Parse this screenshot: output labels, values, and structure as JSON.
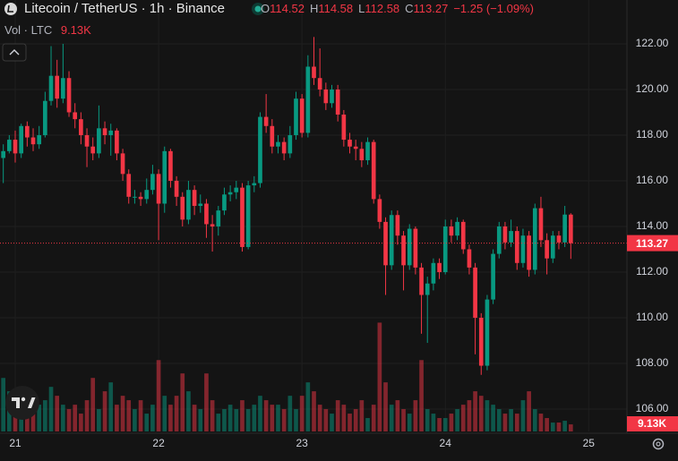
{
  "chart_data": {
    "type": "candlestick",
    "title": "Litecoin / TetherUS · 1h · Binance",
    "ohlc_letters": [
      "O",
      "H",
      "L",
      "C"
    ],
    "change_label": "−1.25 (−1.09%)",
    "volume_title": "Vol · LTC",
    "volume_last_label": "9.13K",
    "up_color": "#089981",
    "down_color": "#f23645",
    "open": [
      117.0,
      117.3,
      117.8,
      117.2,
      118.4,
      117.9,
      117.6,
      118.0,
      119.5,
      120.6,
      119.6,
      120.5,
      119.0,
      118.7,
      118.0,
      117.5,
      117.2,
      118.3,
      118.0,
      118.2,
      117.2,
      116.3,
      115.3,
      115.3,
      115.2,
      115.6,
      116.3,
      115.0,
      117.3,
      116.0,
      115.3,
      114.3,
      115.6,
      114.9,
      115.0,
      114.1,
      114.0,
      114.7,
      115.4,
      115.5,
      115.7,
      113.1,
      115.8,
      115.9,
      118.8,
      118.4,
      117.5,
      117.7,
      117.2,
      118.0,
      119.6,
      118.1,
      121.0,
      120.5,
      120.0,
      119.4,
      120.0,
      118.9,
      117.8,
      117.5,
      117.4,
      116.9,
      117.7,
      115.2,
      114.2,
      112.3,
      114.5,
      113.6,
      112.3,
      113.9,
      112.2,
      111.0,
      111.5,
      112.4,
      112.0,
      114.0,
      113.6,
      114.2,
      113.0,
      112.2,
      110.0,
      107.9,
      110.8,
      112.8,
      114.0,
      113.3,
      113.8,
      112.4,
      113.6,
      112.1,
      114.8,
      113.4,
      112.6,
      113.6,
      113.3,
      114.52
    ],
    "high": [
      117.6,
      118.0,
      118.2,
      118.5,
      118.6,
      118.3,
      118.4,
      119.9,
      121.9,
      121.3,
      122.0,
      120.8,
      119.4,
      119.0,
      118.3,
      117.9,
      119.3,
      118.6,
      118.5,
      118.3,
      117.4,
      116.5,
      115.6,
      115.5,
      116.1,
      116.7,
      116.5,
      117.5,
      117.4,
      116.2,
      115.5,
      116.0,
      115.8,
      115.4,
      115.2,
      114.5,
      114.9,
      115.7,
      115.8,
      116.0,
      115.9,
      116.0,
      116.2,
      119.0,
      119.8,
      118.7,
      118.0,
      117.9,
      118.4,
      119.9,
      119.8,
      121.5,
      122.3,
      121.8,
      120.3,
      120.2,
      120.2,
      119.1,
      118.1,
      117.8,
      117.7,
      117.9,
      117.8,
      115.4,
      114.4,
      114.7,
      114.7,
      113.8,
      114.1,
      114.0,
      112.4,
      111.8,
      112.6,
      112.6,
      114.3,
      114.3,
      114.4,
      114.3,
      113.2,
      112.4,
      110.2,
      111.0,
      113.0,
      114.2,
      114.2,
      114.3,
      114.0,
      113.9,
      113.8,
      115.0,
      115.3,
      113.7,
      113.8,
      113.8,
      114.9,
      114.58
    ],
    "low": [
      115.9,
      117.2,
      116.8,
      117.0,
      117.5,
      117.3,
      117.4,
      117.9,
      119.3,
      119.2,
      119.4,
      118.8,
      118.3,
      117.6,
      116.6,
      116.9,
      117.0,
      117.6,
      117.1,
      116.9,
      116.0,
      115.0,
      115.0,
      114.9,
      115.0,
      115.4,
      113.4,
      114.6,
      115.7,
      114.9,
      114.0,
      114.1,
      114.5,
      114.6,
      113.5,
      112.9,
      113.6,
      114.5,
      115.1,
      115.2,
      112.9,
      113.0,
      115.5,
      115.7,
      118.1,
      117.2,
      117.2,
      116.9,
      117.0,
      117.8,
      117.9,
      117.9,
      120.2,
      119.7,
      119.1,
      119.2,
      118.6,
      117.5,
      117.2,
      116.9,
      116.6,
      116.7,
      115.0,
      113.9,
      111.0,
      112.1,
      113.2,
      111.2,
      112.1,
      111.9,
      109.3,
      108.9,
      111.2,
      111.7,
      111.9,
      113.3,
      113.4,
      112.8,
      111.9,
      108.4,
      107.5,
      107.7,
      110.6,
      112.6,
      113.0,
      113.1,
      112.1,
      112.2,
      111.8,
      111.9,
      113.1,
      111.9,
      112.4,
      113.0,
      113.1,
      112.58
    ],
    "close": [
      117.3,
      117.8,
      117.2,
      118.4,
      117.9,
      117.6,
      118.0,
      119.5,
      120.6,
      119.6,
      120.5,
      119.0,
      118.7,
      118.0,
      117.5,
      117.2,
      118.3,
      118.0,
      118.2,
      117.2,
      116.3,
      115.3,
      115.3,
      115.2,
      115.6,
      116.3,
      115.0,
      117.3,
      116.0,
      115.3,
      114.3,
      115.6,
      114.9,
      115.0,
      114.1,
      114.0,
      114.7,
      115.4,
      115.5,
      115.7,
      113.1,
      115.8,
      115.9,
      118.8,
      118.4,
      117.5,
      117.7,
      117.2,
      118.0,
      119.6,
      118.1,
      121.0,
      120.5,
      120.0,
      119.4,
      120.0,
      118.9,
      117.8,
      117.5,
      117.4,
      116.9,
      117.7,
      115.2,
      114.2,
      112.3,
      114.5,
      113.6,
      112.3,
      113.9,
      112.2,
      111.0,
      111.5,
      112.4,
      112.0,
      114.0,
      113.6,
      114.2,
      113.0,
      112.2,
      110.0,
      107.9,
      110.8,
      112.8,
      114.0,
      113.3,
      113.8,
      112.4,
      113.6,
      112.1,
      114.8,
      113.4,
      112.6,
      113.6,
      113.3,
      114.52,
      113.27
    ],
    "volume": [
      69000,
      51800,
      40300,
      57500,
      34500,
      46000,
      34500,
      40300,
      57500,
      46000,
      34500,
      28800,
      34500,
      23000,
      40300,
      69000,
      28800,
      51800,
      63300,
      34500,
      46000,
      40300,
      28800,
      40300,
      23000,
      34500,
      92000,
      46000,
      34500,
      46000,
      74800,
      51800,
      34500,
      28800,
      74800,
      40300,
      23000,
      28800,
      34500,
      28800,
      40300,
      28800,
      34500,
      46000,
      40300,
      34500,
      34500,
      28800,
      46000,
      28800,
      46000,
      63300,
      51800,
      34500,
      28800,
      23000,
      40300,
      34500,
      23000,
      28800,
      40300,
      17300,
      34500,
      140300,
      63300,
      34500,
      40300,
      28800,
      23000,
      40300,
      92000,
      28800,
      23000,
      17300,
      17300,
      23000,
      28800,
      34500,
      40300,
      51800,
      46000,
      40300,
      34500,
      28800,
      23000,
      28800,
      23000,
      40300,
      51800,
      28800,
      23000,
      17300,
      11500,
      11500,
      13800,
      9130
    ],
    "xlim": [
      -0.55,
      104.4
    ],
    "xticks": [
      {
        "value": 2,
        "label": "21"
      },
      {
        "value": 26,
        "label": "22"
      },
      {
        "value": 50,
        "label": "23"
      },
      {
        "value": 74,
        "label": "24"
      },
      {
        "value": 98,
        "label": "25"
      }
    ],
    "ylim": [
      105.02,
      123.92
    ],
    "yticks": [
      {
        "value": 106,
        "label": "106.00"
      },
      {
        "value": 108,
        "label": "108.00"
      },
      {
        "value": 110,
        "label": "110.00"
      },
      {
        "value": 112,
        "label": "112.00"
      },
      {
        "value": 114,
        "label": "114.00"
      },
      {
        "value": 116,
        "label": "116.00"
      },
      {
        "value": 118,
        "label": "118.00"
      },
      {
        "value": 120,
        "label": "120.00"
      },
      {
        "value": 122,
        "label": "122.00"
      }
    ],
    "volume_lim": [
      0,
      150000
    ],
    "grid": true
  }
}
